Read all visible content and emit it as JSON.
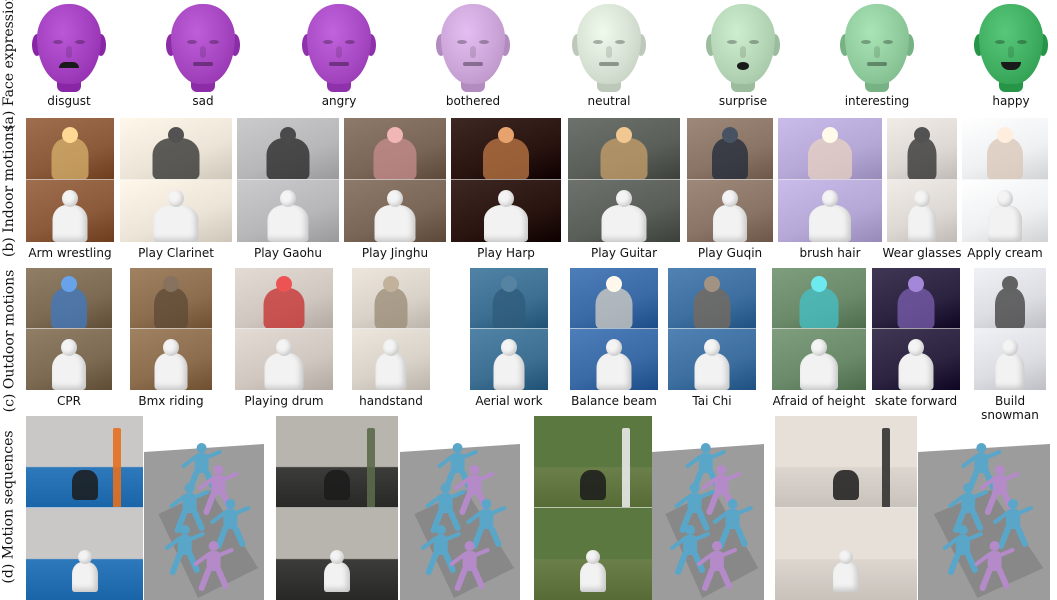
{
  "row_labels": {
    "a": "(a) Face expression",
    "b": "(b) Indoor motions",
    "c": "(c) Outdoor motions",
    "d": "(d) Motion sequences"
  },
  "faces": [
    {
      "label": "disgust",
      "color": "#a23fbf",
      "mouth": "frown"
    },
    {
      "label": "sad",
      "color": "#a545c0",
      "mouth": "flat"
    },
    {
      "label": "angry",
      "color": "#a84ac4",
      "mouth": "flat"
    },
    {
      "label": "bothered",
      "color": "#cba4d8",
      "mouth": "flat"
    },
    {
      "label": "neutral",
      "color": "#d6e1d3",
      "mouth": "flat"
    },
    {
      "label": "surprise",
      "color": "#b4d5b6",
      "mouth": "open"
    },
    {
      "label": "interesting",
      "color": "#8fcb9c",
      "mouth": "flat"
    },
    {
      "label": "happy",
      "color": "#3fae61",
      "mouth": "smile"
    }
  ],
  "indoor": [
    {
      "label": "Arm wrestling",
      "bg": "#8a5a3a",
      "accent": "#d8b16c"
    },
    {
      "label": "Play Clarinet",
      "bg": "#ece4d6",
      "accent": "#2a2a2a"
    },
    {
      "label": "Play Gaohu",
      "bg": "#b7b6b8",
      "accent": "#222222"
    },
    {
      "label": "Play Jinghu",
      "bg": "#7a6656",
      "accent": "#c98e8e"
    },
    {
      "label": "Play Harp",
      "bg": "#2a1410",
      "accent": "#c07a45"
    },
    {
      "label": "Play Guitar",
      "bg": "#5a5e58",
      "accent": "#caa06a"
    },
    {
      "label": "Play Guqin",
      "bg": "#8a7466",
      "accent": "#1f2a3a"
    },
    {
      "label": "brush hair",
      "bg": "#b6a8d6",
      "accent": "#e8d2c2"
    },
    {
      "label": "Wear glasses",
      "bg": "#ddd8d4",
      "accent": "#2a2a2a"
    },
    {
      "label": "Apply cream",
      "bg": "#eef0f2",
      "accent": "#d9c6b6"
    }
  ],
  "outdoor": [
    {
      "label": "CPR",
      "bg": "#7c6a52",
      "accent": "#3f7ac2"
    },
    {
      "label": "Bmx riding",
      "bg": "#8c6e4e",
      "accent": "#5e4a36"
    },
    {
      "label": "Playing drum",
      "bg": "#d0c8c0",
      "accent": "#c52b2b"
    },
    {
      "label": "handstand",
      "bg": "#d8d2c8",
      "accent": "#9a8a74"
    },
    {
      "label": "Aerial work",
      "bg": "#3d6f93",
      "accent": "#2f5b7a"
    },
    {
      "label": "Balance beam",
      "bg": "#3a6aa6",
      "accent": "#d6d0c4"
    },
    {
      "label": "Tai Chi",
      "bg": "#3d6ea0",
      "accent": "#7a6a5a"
    },
    {
      "label": "Afraid of height",
      "bg": "#6a8a6a",
      "accent": "#44c2c8"
    },
    {
      "label": "skate forward",
      "bg": "#2c2340",
      "accent": "#7b5fb0"
    },
    {
      "label": "Build\nsnowman",
      "bg": "#dcdde2",
      "accent": "#3a3a3a"
    }
  ],
  "sequences": [
    {
      "bg_top": "#2e78bc",
      "bg_wall": "#c9c8c6",
      "accent": "#e5701f"
    },
    {
      "bg_top": "#3c3c3a",
      "bg_wall": "#b8b4ae",
      "accent": "#5a6a4a"
    },
    {
      "bg_top": "#6b7f4a",
      "bg_wall": "#5a7840",
      "accent": "#e8e8e8"
    },
    {
      "bg_top": "#dcd6cf",
      "bg_wall": "#e6e0d8",
      "accent": "#333333"
    }
  ],
  "colors": {
    "mesh_blue": "#5aa6c9",
    "mesh_purple": "#b48ac9",
    "floor": "#9c9c9c",
    "floor_dark": "#888888"
  }
}
